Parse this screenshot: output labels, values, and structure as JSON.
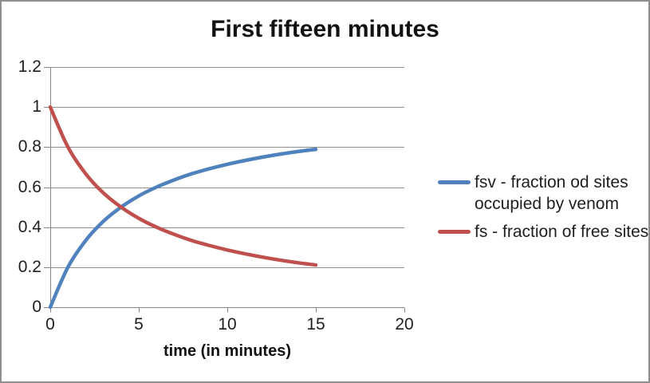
{
  "frame": {
    "background": "#ffffff",
    "border_color": "#8f8f8f"
  },
  "chart_data": {
    "type": "line",
    "title": "First fifteen minutes",
    "xlabel": "time (in minutes)",
    "ylabel": "",
    "xlim": [
      0,
      20
    ],
    "ylim": [
      0,
      1.2
    ],
    "x_ticks": [
      0,
      5,
      10,
      15,
      20
    ],
    "y_ticks": [
      0,
      0.2,
      0.4,
      0.6,
      0.8,
      1,
      1.2
    ],
    "grid": "horizontal-major-only",
    "legend_position": "right",
    "axis_color": "#868686",
    "gridline_color": "#8e8e8e",
    "text_color": "#1f1f1f",
    "x": [
      0,
      1,
      2,
      3,
      4,
      5,
      6,
      7,
      8,
      9,
      10,
      11,
      12,
      13,
      14,
      15
    ],
    "series": [
      {
        "name": "fsv - fraction od sites occupied by venom",
        "color": "#4F81BD",
        "values": [
          0,
          0.2,
          0.333,
          0.429,
          0.5,
          0.556,
          0.6,
          0.636,
          0.667,
          0.692,
          0.714,
          0.733,
          0.75,
          0.765,
          0.778,
          0.789
        ]
      },
      {
        "name": "fs - fraction of free sites",
        "color": "#C0504D",
        "values": [
          1,
          0.8,
          0.667,
          0.571,
          0.5,
          0.444,
          0.4,
          0.364,
          0.333,
          0.308,
          0.286,
          0.267,
          0.25,
          0.235,
          0.222,
          0.211
        ]
      }
    ]
  }
}
